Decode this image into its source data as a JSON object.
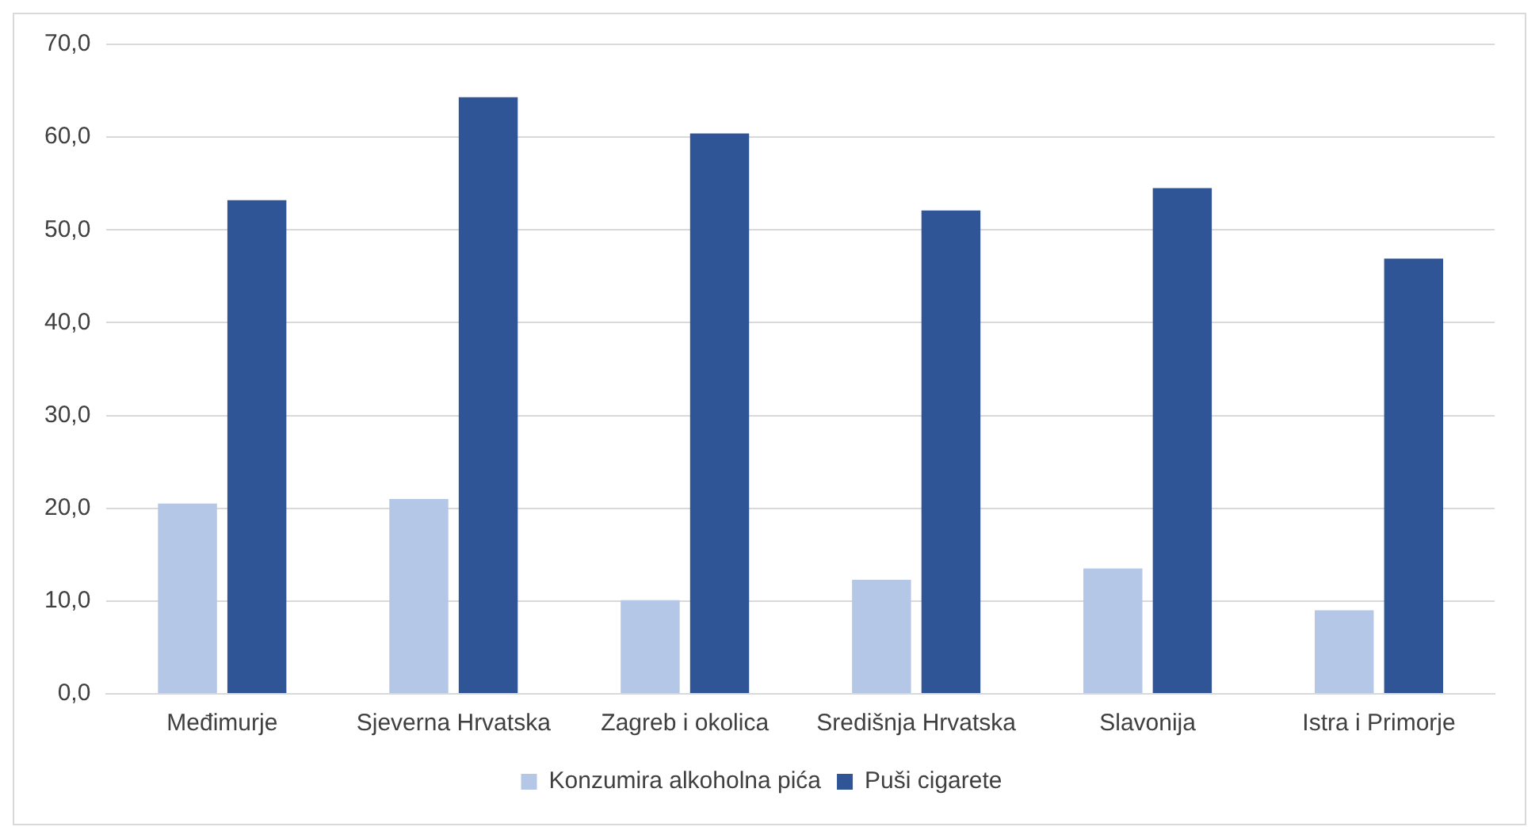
{
  "chart_data": {
    "type": "bar",
    "categories": [
      "Međimurje",
      "Sjeverna Hrvatska",
      "Zagreb i okolica",
      "Središnja Hrvatska",
      "Slavonija",
      "Istra i Primorje"
    ],
    "series": [
      {
        "name": "Konzumira alkoholna pića",
        "color": "#b4c7e7",
        "values": [
          20.5,
          21.0,
          10.1,
          12.3,
          13.5,
          9.0
        ]
      },
      {
        "name": "Puši cigarete",
        "color": "#2f5597",
        "values": [
          53.2,
          64.3,
          60.4,
          52.1,
          54.5,
          46.9
        ]
      }
    ],
    "ylim": [
      0,
      70
    ],
    "yticks": [
      {
        "value": 0,
        "label": "0,0"
      },
      {
        "value": 10,
        "label": "10,0"
      },
      {
        "value": 20,
        "label": "20,0"
      },
      {
        "value": 30,
        "label": "30,0"
      },
      {
        "value": 40,
        "label": "40,0"
      },
      {
        "value": 50,
        "label": "50,0"
      },
      {
        "value": 60,
        "label": "60,0"
      },
      {
        "value": 70,
        "label": "70,0"
      }
    ],
    "grid": "y",
    "legend": "bottom"
  }
}
